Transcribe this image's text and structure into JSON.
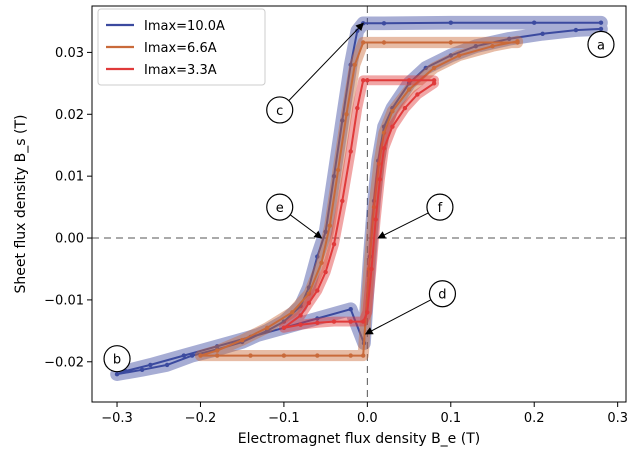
{
  "chart_data": {
    "type": "line",
    "title": "",
    "xlabel": "Electromagnet flux density B_e (T)",
    "ylabel": "Sheet flux density B_s (T)",
    "xlim": [
      -0.33,
      0.31
    ],
    "ylim": [
      -0.0265,
      0.0375
    ],
    "xticks": [
      -0.3,
      -0.2,
      -0.1,
      0.0,
      0.1,
      0.2,
      0.3
    ],
    "yticks": [
      -0.02,
      -0.01,
      0.0,
      0.01,
      0.02,
      0.03
    ],
    "xtick_labels": [
      "−0.3",
      "−0.2",
      "−0.1",
      "0.0",
      "0.1",
      "0.2",
      "0.3"
    ],
    "ytick_labels": [
      "−0.02",
      "−0.01",
      "0.00",
      "0.01",
      "0.02",
      "0.03"
    ],
    "grid": false,
    "reference_lines": {
      "x": 0,
      "y": 0,
      "style": "dashed"
    },
    "legend_position": "top-left",
    "series": [
      {
        "name": "Imax=10.0A",
        "color": "#3b4a9f",
        "band_width": 0.0011,
        "x": [
          0.28,
          0.2,
          0.1,
          0.02,
          -0.005,
          -0.012,
          -0.02,
          -0.03,
          -0.04,
          -0.05,
          -0.06,
          -0.07,
          -0.08,
          -0.1,
          -0.12,
          -0.15,
          -0.18,
          -0.21,
          -0.24,
          -0.27,
          -0.3,
          -0.29,
          -0.26,
          -0.22,
          -0.18,
          -0.14,
          -0.1,
          -0.06,
          -0.02,
          -0.004,
          0.003,
          0.008,
          0.013,
          0.02,
          0.03,
          0.05,
          0.07,
          0.1,
          0.13,
          0.17,
          0.21,
          0.25,
          0.28
        ],
        "y": [
          0.0348,
          0.0348,
          0.0348,
          0.0347,
          0.0347,
          0.0335,
          0.028,
          0.019,
          0.01,
          0.001,
          -0.003,
          -0.008,
          -0.011,
          -0.0135,
          -0.015,
          -0.0168,
          -0.018,
          -0.019,
          -0.0205,
          -0.0213,
          -0.022,
          -0.0215,
          -0.0205,
          -0.019,
          -0.0175,
          -0.016,
          -0.0145,
          -0.013,
          -0.0115,
          -0.017,
          -0.003,
          0.006,
          0.0125,
          0.018,
          0.021,
          0.025,
          0.0275,
          0.0295,
          0.031,
          0.0322,
          0.033,
          0.0336,
          0.0338
        ]
      },
      {
        "name": "Imax=6.6A",
        "color": "#c96a3a",
        "band_width": 0.0009,
        "x": [
          0.18,
          0.1,
          0.02,
          -0.005,
          -0.015,
          -0.025,
          -0.035,
          -0.045,
          -0.055,
          -0.07,
          -0.09,
          -0.12,
          -0.15,
          -0.18,
          -0.2,
          -0.18,
          -0.14,
          -0.1,
          -0.06,
          -0.02,
          -0.005,
          0.002,
          0.008,
          0.014,
          0.02,
          0.03,
          0.05,
          0.08,
          0.11,
          0.15,
          0.18
        ],
        "y": [
          0.0316,
          0.0316,
          0.0316,
          0.0316,
          0.028,
          0.02,
          0.011,
          0.002,
          -0.004,
          -0.009,
          -0.012,
          -0.0145,
          -0.0165,
          -0.0182,
          -0.019,
          -0.019,
          -0.019,
          -0.019,
          -0.019,
          -0.019,
          -0.019,
          -0.005,
          0.005,
          0.012,
          0.017,
          0.0205,
          0.024,
          0.0275,
          0.0295,
          0.031,
          0.0318
        ]
      },
      {
        "name": "Imax=3.3A",
        "color": "#e03a3a",
        "band_width": 0.0008,
        "x": [
          0.08,
          0.05,
          0.0,
          -0.005,
          -0.012,
          -0.02,
          -0.03,
          -0.04,
          -0.05,
          -0.06,
          -0.07,
          -0.08,
          -0.1,
          -0.08,
          -0.06,
          -0.04,
          -0.02,
          -0.005,
          0.0,
          0.005,
          0.01,
          0.015,
          0.02,
          0.03,
          0.045,
          0.06,
          0.08
        ],
        "y": [
          0.0255,
          0.0255,
          0.0255,
          0.0255,
          0.021,
          0.014,
          0.006,
          -0.001,
          -0.0055,
          -0.0085,
          -0.0105,
          -0.0125,
          -0.0145,
          -0.014,
          -0.0137,
          -0.0135,
          -0.0135,
          -0.0135,
          -0.012,
          -0.005,
          0.003,
          0.0095,
          0.0145,
          0.018,
          0.021,
          0.0232,
          0.025
        ]
      }
    ],
    "annotations": [
      {
        "label": "a",
        "x": 0.28,
        "y": 0.0313
      },
      {
        "label": "b",
        "x": -0.3,
        "y": -0.0195
      },
      {
        "label": "c",
        "x": -0.105,
        "y": 0.0207,
        "arrow_to_x": -0.005,
        "arrow_to_y": 0.0347
      },
      {
        "label": "d",
        "x": 0.09,
        "y": -0.009,
        "arrow_to_x": -0.002,
        "arrow_to_y": -0.0155
      },
      {
        "label": "e",
        "x": -0.105,
        "y": 0.005,
        "arrow_to_x": -0.055,
        "arrow_to_y": 0.0
      },
      {
        "label": "f",
        "x": 0.087,
        "y": 0.005,
        "arrow_to_x": 0.013,
        "arrow_to_y": 0.0
      }
    ]
  }
}
